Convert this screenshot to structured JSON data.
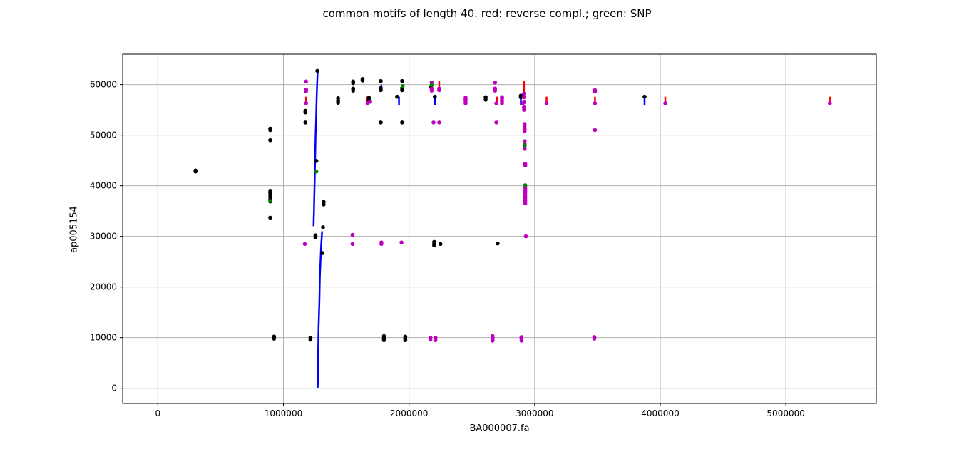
{
  "chart_data": {
    "type": "scatter",
    "title": "common motifs of length 40. red: reverse compl.; green: SNP",
    "xlabel": "BA000007.fa",
    "ylabel": "ap005154",
    "xlim": [
      -280000,
      5720000
    ],
    "ylim": [
      -3000,
      66000
    ],
    "xticks": [
      0,
      1000000,
      2000000,
      3000000,
      4000000,
      5000000
    ],
    "xtick_labels": [
      "0",
      "1000000",
      "2000000",
      "3000000",
      "4000000",
      "5000000"
    ],
    "yticks": [
      0,
      10000,
      20000,
      30000,
      40000,
      50000,
      60000
    ],
    "ytick_labels": [
      "0",
      "10000",
      "20000",
      "30000",
      "40000",
      "50000",
      "60000"
    ],
    "grid": true,
    "colors": {
      "forward": "#0000ff",
      "reverse": "#ff0000",
      "snp": "#008000",
      "motif_black": "#000000",
      "motif_magenta": "#bf00bf",
      "grid": "#b0b0b0",
      "axes": "#000000"
    },
    "series": [
      {
        "color": "#0000ff",
        "mode": "segments",
        "segments": [
          [
            [
              1272000,
              0
            ],
            [
              1274000,
              800
            ]
          ],
          [
            [
              1274000,
              800
            ],
            [
              1276000,
              6500
            ]
          ],
          [
            [
              1276000,
              6500
            ],
            [
              1280000,
              12000
            ]
          ],
          [
            [
              1280000,
              12000
            ],
            [
              1286000,
              17000
            ]
          ],
          [
            [
              1286000,
              17000
            ],
            [
              1290000,
              22000
            ]
          ],
          [
            [
              1290000,
              22000
            ],
            [
              1295000,
              25000
            ]
          ],
          [
            [
              1295000,
              25000
            ],
            [
              1300000,
              28000
            ]
          ],
          [
            [
              1300000,
              28000
            ],
            [
              1308000,
              31000
            ]
          ],
          [
            [
              1240000,
              32000
            ],
            [
              1243000,
              35000
            ]
          ],
          [
            [
              1243000,
              35000
            ],
            [
              1248000,
              40500
            ]
          ],
          [
            [
              1248000,
              40500
            ],
            [
              1252000,
              45000
            ]
          ],
          [
            [
              1252000,
              45000
            ],
            [
              1256000,
              50000
            ]
          ],
          [
            [
              1256000,
              50000
            ],
            [
              1260000,
              53000
            ]
          ],
          [
            [
              1260000,
              53000
            ],
            [
              1264000,
              57000
            ]
          ],
          [
            [
              1264000,
              57000
            ],
            [
              1268000,
              60000
            ]
          ],
          [
            [
              1268000,
              60000
            ],
            [
              1272000,
              62500
            ]
          ],
          [
            [
              1920000,
              56000
            ],
            [
              1920000,
              57600
            ]
          ],
          [
            [
              2205000,
              56000
            ],
            [
              2205000,
              57600
            ]
          ],
          [
            [
              2890000,
              56000
            ],
            [
              2890000,
              57600
            ]
          ],
          [
            [
              3875000,
              56000
            ],
            [
              3875000,
              57600
            ]
          ],
          [
            [
              1780000,
              58800
            ],
            [
              1780000,
              60000
            ]
          ],
          [
            [
              1950000,
              58800
            ],
            [
              1950000,
              60000
            ]
          ]
        ]
      },
      {
        "color": "#ff0000",
        "mode": "segments",
        "segments": [
          [
            [
              1180000,
              56000
            ],
            [
              1180000,
              57600
            ]
          ],
          [
            [
              1665000,
              56000
            ],
            [
              1665000,
              57600
            ]
          ],
          [
            [
              2240000,
              59000
            ],
            [
              2240000,
              60700
            ]
          ],
          [
            [
              2700000,
              56000
            ],
            [
              2700000,
              57600
            ]
          ],
          [
            [
              2915000,
              58000
            ],
            [
              2915000,
              60700
            ]
          ],
          [
            [
              3095000,
              56000
            ],
            [
              3095000,
              57600
            ]
          ],
          [
            [
              3480000,
              56000
            ],
            [
              3480000,
              57600
            ]
          ],
          [
            [
              4040000,
              56000
            ],
            [
              4040000,
              57600
            ]
          ],
          [
            [
              5350000,
              56000
            ],
            [
              5350000,
              57600
            ]
          ]
        ]
      },
      {
        "color": "#000000",
        "mode": "points",
        "points": [
          [
            300000,
            42800
          ],
          [
            300000,
            43000
          ],
          [
            895000,
            33700
          ],
          [
            895000,
            36900
          ],
          [
            895000,
            37300
          ],
          [
            895000,
            37800
          ],
          [
            895000,
            38200
          ],
          [
            895000,
            38600
          ],
          [
            895000,
            39000
          ],
          [
            895000,
            49000
          ],
          [
            895000,
            51000
          ],
          [
            895000,
            51300
          ],
          [
            925000,
            9800
          ],
          [
            925000,
            10200
          ],
          [
            1175000,
            52500
          ],
          [
            1175000,
            54500
          ],
          [
            1175000,
            54800
          ],
          [
            1215000,
            9600
          ],
          [
            1215000,
            10000
          ],
          [
            1255000,
            29800
          ],
          [
            1255000,
            30200
          ],
          [
            1262000,
            44900
          ],
          [
            1270000,
            62700
          ],
          [
            1310000,
            26700
          ],
          [
            1315000,
            31800
          ],
          [
            1320000,
            36300
          ],
          [
            1320000,
            36800
          ],
          [
            1435000,
            56400
          ],
          [
            1435000,
            56800
          ],
          [
            1435000,
            57300
          ],
          [
            1555000,
            58800
          ],
          [
            1555000,
            59200
          ],
          [
            1555000,
            60300
          ],
          [
            1555000,
            60600
          ],
          [
            1630000,
            60800
          ],
          [
            1630000,
            61100
          ],
          [
            1680000,
            56600
          ],
          [
            1680000,
            57000
          ],
          [
            1680000,
            57400
          ],
          [
            1775000,
            52500
          ],
          [
            1775000,
            58900
          ],
          [
            1775000,
            59300
          ],
          [
            1775000,
            60700
          ],
          [
            1800000,
            9500
          ],
          [
            1800000,
            9900
          ],
          [
            1800000,
            10300
          ],
          [
            1905000,
            57600
          ],
          [
            1945000,
            52500
          ],
          [
            1945000,
            58900
          ],
          [
            1945000,
            59300
          ],
          [
            1945000,
            60700
          ],
          [
            1970000,
            9500
          ],
          [
            1970000,
            9900
          ],
          [
            1970000,
            10200
          ],
          [
            2175000,
            59500
          ],
          [
            2200000,
            28200
          ],
          [
            2200000,
            28500
          ],
          [
            2200000,
            28900
          ],
          [
            2205000,
            57600
          ],
          [
            2250000,
            28500
          ],
          [
            2610000,
            57000
          ],
          [
            2610000,
            57500
          ],
          [
            2705000,
            28600
          ],
          [
            2890000,
            57500
          ],
          [
            2890000,
            57800
          ],
          [
            3875000,
            57600
          ]
        ]
      },
      {
        "color": "#bf00bf",
        "mode": "points",
        "points": [
          [
            1170000,
            28500
          ],
          [
            1180000,
            56300
          ],
          [
            1180000,
            58700
          ],
          [
            1180000,
            59000
          ],
          [
            1180000,
            60600
          ],
          [
            1550000,
            28500
          ],
          [
            1550000,
            30300
          ],
          [
            1670000,
            56300
          ],
          [
            1690000,
            56600
          ],
          [
            1780000,
            28500
          ],
          [
            1780000,
            28800
          ],
          [
            1940000,
            28800
          ],
          [
            2170000,
            9600
          ],
          [
            2170000,
            10000
          ],
          [
            2180000,
            58800
          ],
          [
            2180000,
            59200
          ],
          [
            2180000,
            60400
          ],
          [
            2195000,
            52500
          ],
          [
            2210000,
            9500
          ],
          [
            2210000,
            10000
          ],
          [
            2240000,
            52500
          ],
          [
            2240000,
            58900
          ],
          [
            2240000,
            59200
          ],
          [
            2450000,
            56300
          ],
          [
            2450000,
            56700
          ],
          [
            2450000,
            57100
          ],
          [
            2450000,
            57400
          ],
          [
            2665000,
            9400
          ],
          [
            2665000,
            9700
          ],
          [
            2665000,
            10000
          ],
          [
            2665000,
            10300
          ],
          [
            2685000,
            58800
          ],
          [
            2685000,
            59200
          ],
          [
            2685000,
            60400
          ],
          [
            2695000,
            52500
          ],
          [
            2695000,
            56300
          ],
          [
            2740000,
            56300
          ],
          [
            2740000,
            56700
          ],
          [
            2740000,
            57200
          ],
          [
            2740000,
            57500
          ],
          [
            2895000,
            9400
          ],
          [
            2895000,
            9800
          ],
          [
            2895000,
            10100
          ],
          [
            2905000,
            56300
          ],
          [
            2915000,
            55000
          ],
          [
            2915000,
            55500
          ],
          [
            2915000,
            56500
          ],
          [
            2915000,
            57500
          ],
          [
            2915000,
            58200
          ],
          [
            2920000,
            50800
          ],
          [
            2920000,
            51200
          ],
          [
            2920000,
            51700
          ],
          [
            2920000,
            52200
          ],
          [
            2920000,
            47300
          ],
          [
            2920000,
            47800
          ],
          [
            2920000,
            48300
          ],
          [
            2920000,
            48800
          ],
          [
            2925000,
            44000
          ],
          [
            2925000,
            44300
          ],
          [
            2925000,
            36500
          ],
          [
            2925000,
            37000
          ],
          [
            2925000,
            37500
          ],
          [
            2925000,
            38000
          ],
          [
            2925000,
            38500
          ],
          [
            2925000,
            39000
          ],
          [
            2925000,
            39500
          ],
          [
            2925000,
            40000
          ],
          [
            2930000,
            30000
          ],
          [
            3095000,
            56300
          ],
          [
            3475000,
            9800
          ],
          [
            3475000,
            10100
          ],
          [
            3480000,
            51000
          ],
          [
            3480000,
            56300
          ],
          [
            3480000,
            58600
          ],
          [
            3480000,
            58900
          ],
          [
            4040000,
            56300
          ],
          [
            5350000,
            56300
          ]
        ]
      },
      {
        "color": "#008000",
        "mode": "points",
        "points": [
          [
            895000,
            37000
          ],
          [
            1262000,
            42800
          ],
          [
            1950000,
            59700
          ],
          [
            2180000,
            59900
          ],
          [
            2925000,
            40100
          ],
          [
            2920000,
            48000
          ]
        ]
      }
    ]
  }
}
